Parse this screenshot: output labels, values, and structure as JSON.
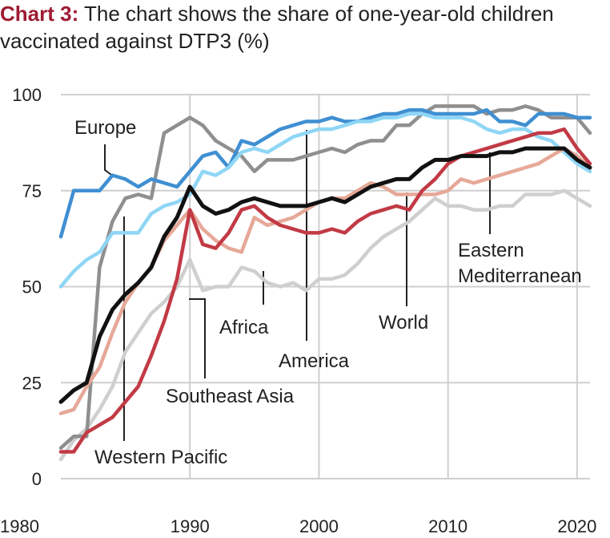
{
  "title": {
    "prefix": "Chart 3:",
    "text": "The chart shows the share of one-year-old children vaccinated against DTP3 (%)"
  },
  "chart_data": {
    "type": "line",
    "title": "Chart 3: The chart shows the share of one-year-old children vaccinated against DTP3 (%)",
    "xlabel": "",
    "ylabel": "",
    "xlim": [
      1980,
      2021
    ],
    "ylim": [
      0,
      100
    ],
    "x_ticks": [
      "1980",
      "1990",
      "2000",
      "2010",
      "2020"
    ],
    "y_ticks": [
      "0",
      "25",
      "50",
      "75",
      "100"
    ],
    "grid": "vertical and horizontal",
    "series": [
      {
        "name": "Europe",
        "color": "#3f8fd2",
        "x": [
          1980,
          1981,
          1982,
          1983,
          1984,
          1985,
          1986,
          1987,
          1988,
          1989,
          1990,
          1991,
          1992,
          1993,
          1994,
          1995,
          1996,
          1997,
          1998,
          1999,
          2000,
          2001,
          2002,
          2003,
          2004,
          2005,
          2006,
          2007,
          2008,
          2009,
          2010,
          2011,
          2012,
          2013,
          2014,
          2015,
          2016,
          2017,
          2018,
          2019,
          2020,
          2021
        ],
        "y": [
          63,
          75,
          75,
          75,
          79,
          78,
          76,
          78,
          77,
          76,
          80,
          84,
          85,
          81,
          88,
          87,
          89,
          91,
          92,
          93,
          93,
          94,
          93,
          93,
          94,
          95,
          95,
          96,
          96,
          95,
          95,
          95,
          95,
          96,
          93,
          93,
          92,
          95,
          95,
          95,
          94,
          94
        ]
      },
      {
        "name": "Western Pacific",
        "color": "#8f8f8f",
        "x": [
          1980,
          1981,
          1982,
          1983,
          1984,
          1985,
          1986,
          1987,
          1988,
          1989,
          1990,
          1991,
          1992,
          1993,
          1994,
          1995,
          1996,
          1997,
          1998,
          1999,
          2000,
          2001,
          2002,
          2003,
          2004,
          2005,
          2006,
          2007,
          2008,
          2009,
          2010,
          2011,
          2012,
          2013,
          2014,
          2015,
          2016,
          2017,
          2018,
          2019,
          2020,
          2021
        ],
        "y": [
          8,
          11,
          11,
          55,
          67,
          73,
          74,
          73,
          90,
          92,
          94,
          92,
          88,
          86,
          84,
          80,
          83,
          83,
          83,
          84,
          85,
          86,
          85,
          87,
          88,
          88,
          92,
          92,
          95,
          97,
          97,
          97,
          97,
          95,
          96,
          96,
          97,
          96,
          94,
          94,
          94,
          90
        ]
      },
      {
        "name": "America",
        "color": "#8fd6f5",
        "x": [
          1980,
          1981,
          1982,
          1983,
          1984,
          1985,
          1986,
          1987,
          1988,
          1989,
          1990,
          1991,
          1992,
          1993,
          1994,
          1995,
          1996,
          1997,
          1998,
          1999,
          2000,
          2001,
          2002,
          2003,
          2004,
          2005,
          2006,
          2007,
          2008,
          2009,
          2010,
          2011,
          2012,
          2013,
          2014,
          2015,
          2016,
          2017,
          2018,
          2019,
          2020,
          2021
        ],
        "y": [
          50,
          54,
          57,
          59,
          64,
          64,
          64,
          69,
          71,
          72,
          74,
          80,
          79,
          81,
          85,
          86,
          85,
          87,
          89,
          90,
          91,
          91,
          92,
          93,
          93,
          94,
          94,
          95,
          95,
          94,
          94,
          94,
          93,
          91,
          90,
          91,
          91,
          89,
          88,
          85,
          82,
          80
        ]
      },
      {
        "name": "Eastern Mediterranean",
        "color": "#e6a898",
        "x": [
          1980,
          1981,
          1982,
          1983,
          1984,
          1985,
          1986,
          1987,
          1988,
          1989,
          1990,
          1991,
          1992,
          1993,
          1994,
          1995,
          1996,
          1997,
          1998,
          1999,
          2000,
          2001,
          2002,
          2003,
          2004,
          2005,
          2006,
          2007,
          2008,
          2009,
          2010,
          2011,
          2012,
          2013,
          2014,
          2015,
          2016,
          2017,
          2018,
          2019,
          2020,
          2021
        ],
        "y": [
          17,
          18,
          24,
          29,
          38,
          46,
          51,
          55,
          62,
          66,
          70,
          65,
          62,
          60,
          59,
          68,
          66,
          67,
          68,
          70,
          72,
          73,
          73,
          75,
          77,
          76,
          74,
          74,
          74,
          74,
          75,
          78,
          77,
          78,
          79,
          80,
          81,
          82,
          84,
          86,
          84,
          81
        ]
      },
      {
        "name": "World",
        "color": "#111111",
        "x": [
          1980,
          1981,
          1982,
          1983,
          1984,
          1985,
          1986,
          1987,
          1988,
          1989,
          1990,
          1991,
          1992,
          1993,
          1994,
          1995,
          1996,
          1997,
          1998,
          1999,
          2000,
          2001,
          2002,
          2003,
          2004,
          2005,
          2006,
          2007,
          2008,
          2009,
          2010,
          2011,
          2012,
          2013,
          2014,
          2015,
          2016,
          2017,
          2018,
          2019,
          2020,
          2021
        ],
        "y": [
          20,
          23,
          25,
          37,
          44,
          48,
          51,
          55,
          63,
          68,
          76,
          71,
          69,
          70,
          72,
          73,
          72,
          71,
          71,
          71,
          72,
          73,
          72,
          74,
          76,
          77,
          78,
          78,
          81,
          83,
          83,
          84,
          84,
          84,
          85,
          85,
          86,
          86,
          86,
          86,
          83,
          81
        ]
      },
      {
        "name": "Southeast Asia",
        "color": "#c23a45",
        "x": [
          1980,
          1981,
          1982,
          1983,
          1984,
          1985,
          1986,
          1987,
          1988,
          1989,
          1990,
          1991,
          1992,
          1993,
          1994,
          1995,
          1996,
          1997,
          1998,
          1999,
          2000,
          2001,
          2002,
          2003,
          2004,
          2005,
          2006,
          2007,
          2008,
          2009,
          2010,
          2011,
          2012,
          2013,
          2014,
          2015,
          2016,
          2017,
          2018,
          2019,
          2020,
          2021
        ],
        "y": [
          7,
          7,
          12,
          14,
          16,
          20,
          24,
          32,
          41,
          52,
          70,
          61,
          60,
          64,
          70,
          71,
          68,
          66,
          65,
          64,
          64,
          65,
          64,
          67,
          69,
          70,
          71,
          70,
          75,
          78,
          82,
          84,
          85,
          86,
          87,
          88,
          89,
          90,
          90,
          91,
          86,
          82
        ]
      },
      {
        "name": "Africa",
        "color": "#cfcfcf",
        "x": [
          1980,
          1981,
          1982,
          1983,
          1984,
          1985,
          1986,
          1987,
          1988,
          1989,
          1990,
          1991,
          1992,
          1993,
          1994,
          1995,
          1996,
          1997,
          1998,
          1999,
          2000,
          2001,
          2002,
          2003,
          2004,
          2005,
          2006,
          2007,
          2008,
          2009,
          2010,
          2011,
          2012,
          2013,
          2014,
          2015,
          2016,
          2017,
          2018,
          2019,
          2020,
          2021
        ],
        "y": [
          5,
          10,
          13,
          18,
          24,
          33,
          38,
          43,
          46,
          50,
          57,
          49,
          50,
          50,
          55,
          54,
          51,
          50,
          51,
          49,
          52,
          52,
          53,
          56,
          60,
          63,
          65,
          67,
          70,
          73,
          71,
          71,
          70,
          70,
          71,
          71,
          74,
          74,
          74,
          75,
          73,
          71
        ]
      }
    ],
    "annotations": [
      {
        "text": "Europe"
      },
      {
        "text": "Western Pacific"
      },
      {
        "text": "America"
      },
      {
        "text": "Eastern Mediterranean"
      },
      {
        "text": "World"
      },
      {
        "text": "Southeast Asia"
      },
      {
        "text": "Africa"
      }
    ],
    "annotation_lines": [
      "Eastern",
      "Mediterranean"
    ]
  }
}
